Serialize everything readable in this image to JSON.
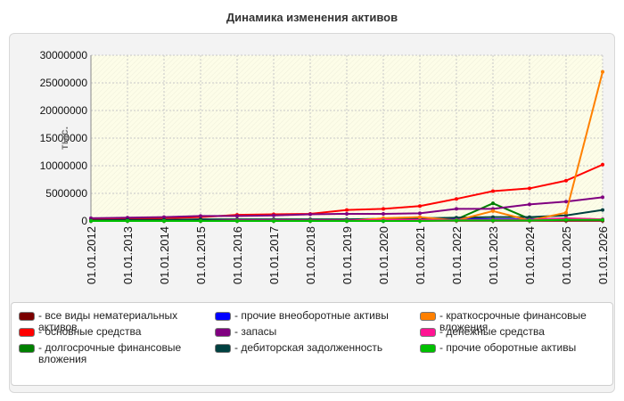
{
  "header": {
    "title": "Динамика изменения активов"
  },
  "chart_data": {
    "type": "line",
    "title": "Динамика изменения активов",
    "ylabel": "тыс.",
    "xlabel": "",
    "ylim": [
      0,
      30000000
    ],
    "yticks": [
      "0",
      "5000000",
      "10000000",
      "15000000",
      "20000000",
      "25000000",
      "30000000"
    ],
    "categories": [
      "01.01.2012",
      "01.01.2013",
      "01.01.2014",
      "01.01.2015",
      "01.01.2016",
      "01.01.2017",
      "01.01.2018",
      "01.01.2019",
      "01.01.2020",
      "01.01.2021",
      "01.01.2022",
      "01.01.2023",
      "01.01.2024",
      "01.01.2025",
      "01.01.2026"
    ],
    "grid": true,
    "legend_position": "bottom",
    "series": [
      {
        "name": "все виды нематериальных активов",
        "color": "#7a0000",
        "values": [
          50000,
          50000,
          50000,
          50000,
          50000,
          50000,
          50000,
          50000,
          50000,
          50000,
          50000,
          50000,
          50000,
          50000,
          50000
        ]
      },
      {
        "name": "основные средства",
        "color": "#ff0000",
        "values": [
          300000,
          400000,
          500000,
          700000,
          1100000,
          1200000,
          1300000,
          2000000,
          2200000,
          2700000,
          4000000,
          5400000,
          5900000,
          7300000,
          10200000
        ]
      },
      {
        "name": "долгосрочные финансовые вложения",
        "color": "#008000",
        "values": [
          100000,
          100000,
          100000,
          200000,
          200000,
          200000,
          200000,
          200000,
          300000,
          300000,
          300000,
          3200000,
          400000,
          300000,
          300000
        ]
      },
      {
        "name": "прочие внеоборотные активы",
        "color": "#0000ff",
        "values": [
          0,
          0,
          0,
          0,
          0,
          0,
          0,
          0,
          0,
          200000,
          400000,
          300000,
          300000,
          400000,
          300000
        ]
      },
      {
        "name": "запасы",
        "color": "#800080",
        "values": [
          500000,
          600000,
          700000,
          900000,
          900000,
          1000000,
          1200000,
          1300000,
          1300000,
          1400000,
          2200000,
          2200000,
          3000000,
          3500000,
          4300000
        ]
      },
      {
        "name": "дебиторская задолженность",
        "color": "#004040",
        "values": [
          100000,
          200000,
          200000,
          300000,
          300000,
          300000,
          300000,
          300000,
          400000,
          500000,
          600000,
          700000,
          700000,
          1000000,
          2000000
        ]
      },
      {
        "name": "краткосрочные финансовые вложения",
        "color": "#ff8000",
        "values": [
          0,
          0,
          0,
          0,
          0,
          0,
          0,
          0,
          500000,
          700000,
          100000,
          1800000,
          100000,
          1500000,
          27000000
        ]
      },
      {
        "name": "денежные средства",
        "color": "#ff1493",
        "values": [
          0,
          0,
          0,
          0,
          100000,
          100000,
          100000,
          100000,
          200000,
          200000,
          200000,
          200000,
          200000,
          500000,
          300000
        ]
      },
      {
        "name": "прочие оборотные активы",
        "color": "#00c000",
        "values": [
          0,
          0,
          0,
          0,
          0,
          0,
          0,
          0,
          0,
          0,
          100000,
          100000,
          100000,
          200000,
          200000
        ]
      }
    ]
  }
}
